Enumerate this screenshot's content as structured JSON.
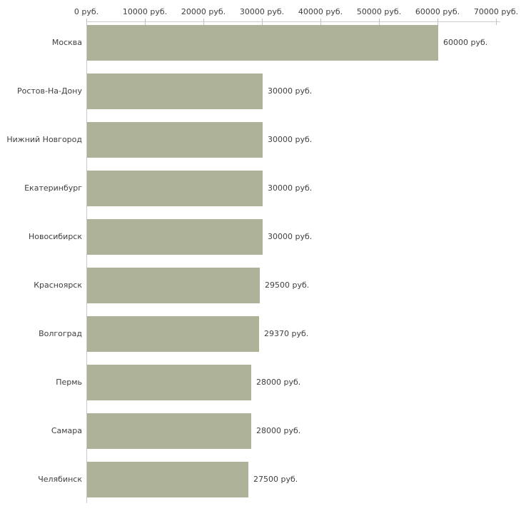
{
  "chart_data": {
    "type": "bar",
    "orientation": "horizontal",
    "title": "",
    "xlabel": "",
    "ylabel": "",
    "categories": [
      "Москва",
      "Ростов-На-Дону",
      "Нижний Новгород",
      "Екатеринбург",
      "Новосибирск",
      "Красноярск",
      "Волгоград",
      "Пермь",
      "Самара",
      "Челябинск"
    ],
    "values": [
      60000,
      30000,
      30000,
      30000,
      30000,
      29500,
      29370,
      28000,
      28000,
      27500
    ],
    "value_labels": [
      "60000 руб.",
      "30000 руб.",
      "30000 руб.",
      "30000 руб.",
      "30000 руб.",
      "29500 руб.",
      "29370 руб.",
      "28000 руб.",
      "28000 руб.",
      "27500 руб."
    ],
    "x_ticks": [
      0,
      10000,
      20000,
      30000,
      40000,
      50000,
      60000,
      70000
    ],
    "x_tick_labels": [
      "0 руб.",
      "10000 руб.",
      "20000 руб.",
      "30000 руб.",
      "40000 руб.",
      "50000 руб.",
      "60000 руб.",
      "70000 руб."
    ],
    "xlim": [
      0,
      70000
    ],
    "grid": false,
    "legend": false,
    "axis_position": "top",
    "colors": {
      "bar": "#aeb299",
      "axis_line": "#cccccc",
      "tick_mark": "#c9c6a5",
      "text": "#404040",
      "background": "#ffffff"
    }
  }
}
